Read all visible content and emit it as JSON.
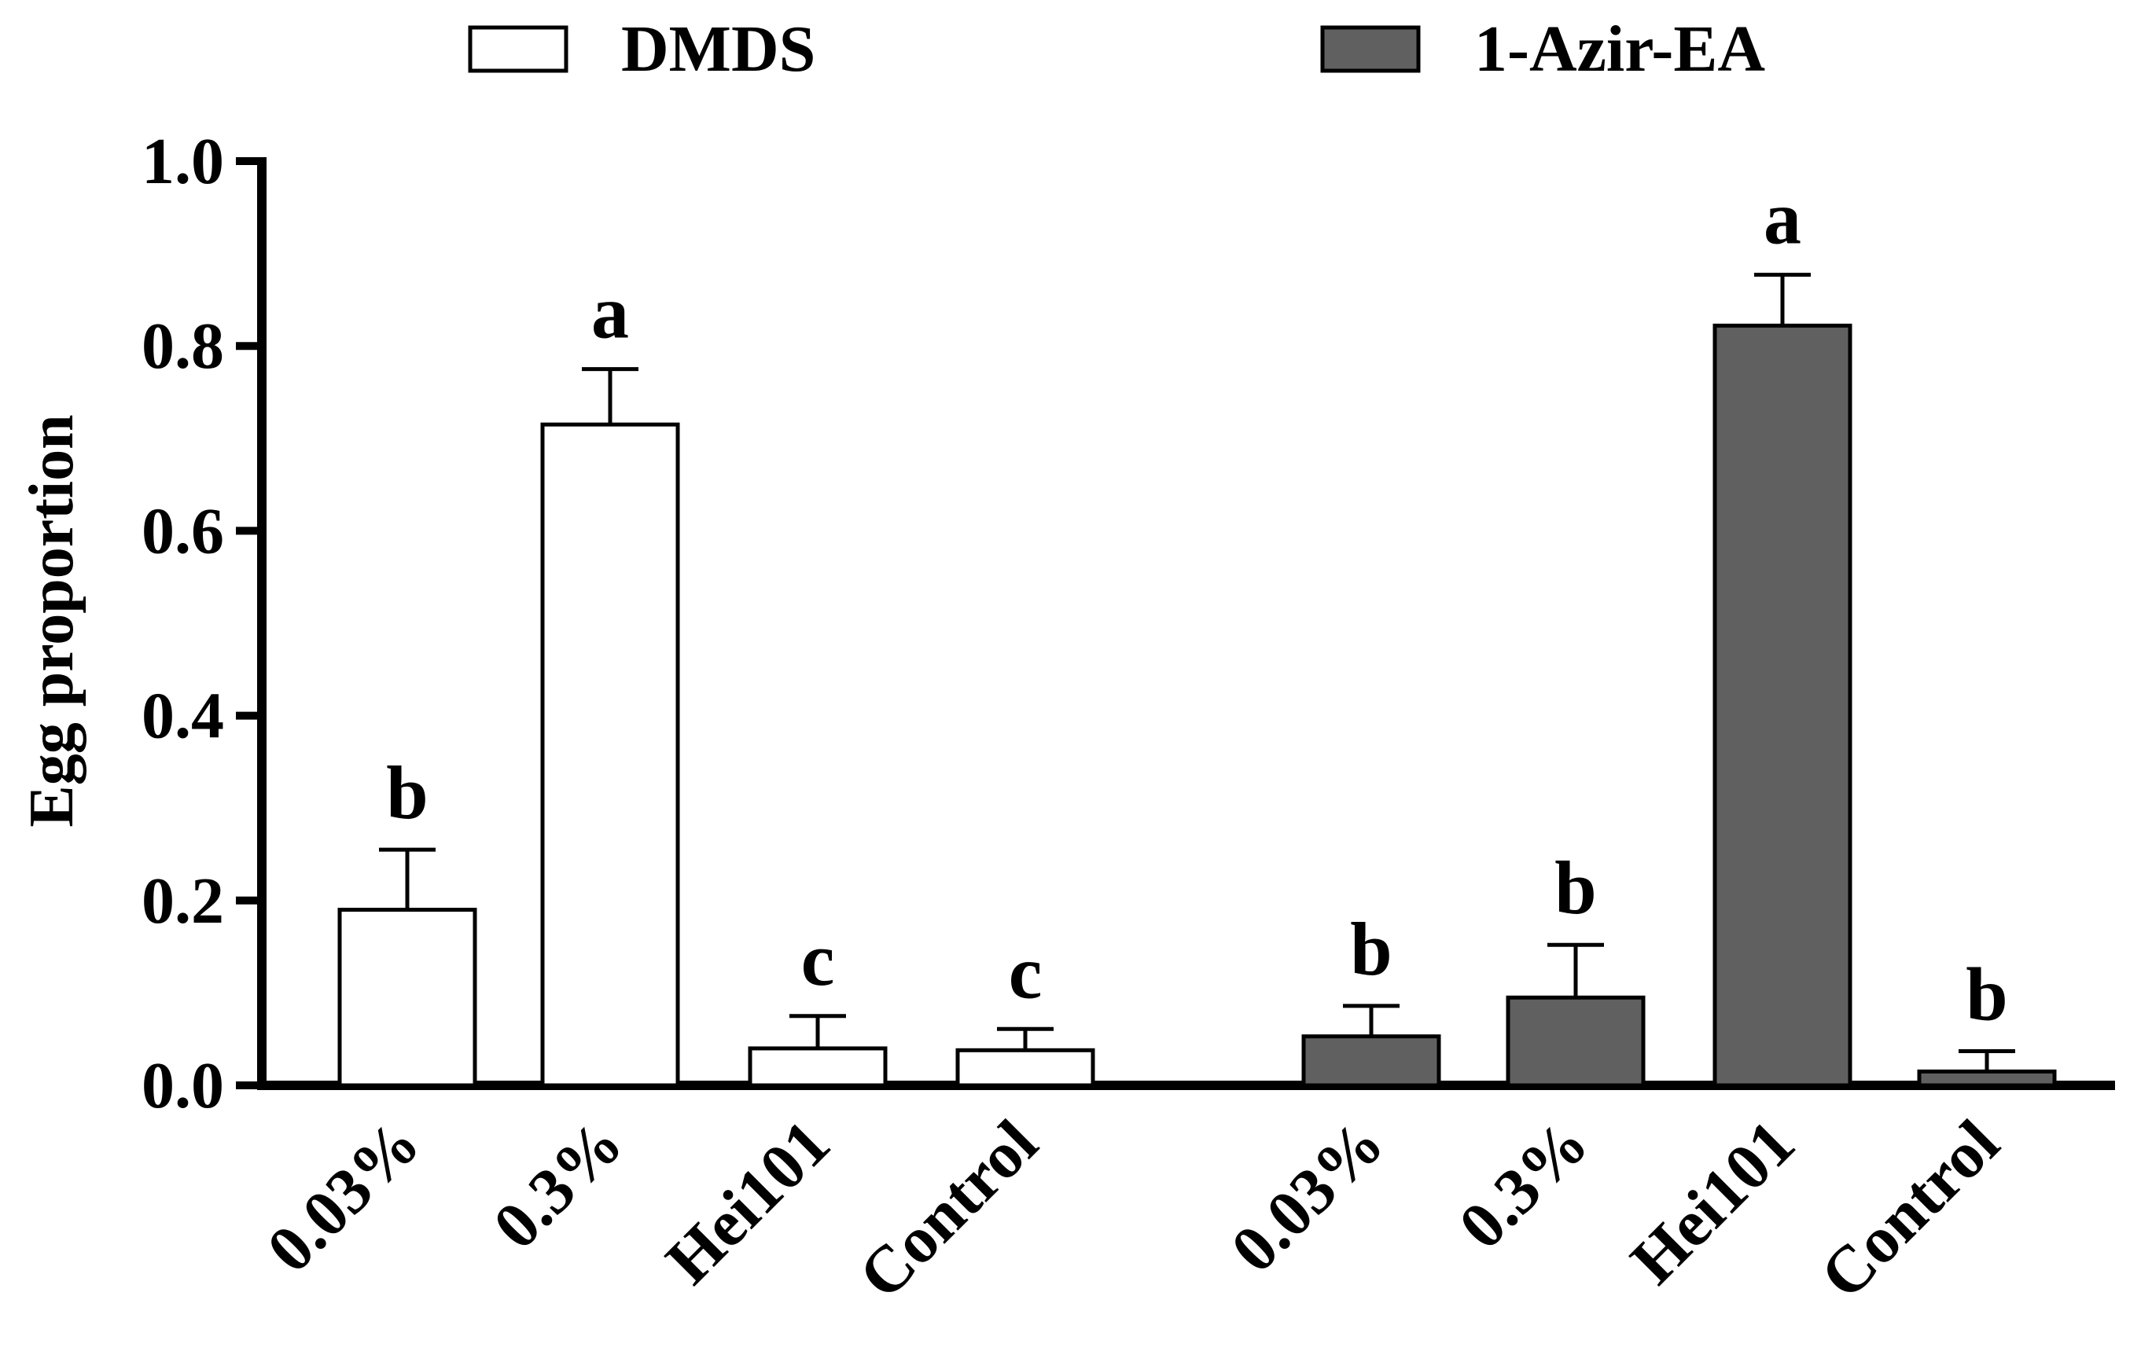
{
  "chart_data": {
    "type": "bar",
    "title": "",
    "xlabel": "",
    "ylabel": "Egg proportion",
    "ylim": [
      0,
      1.0
    ],
    "yticks": [
      "0.0",
      "0.2",
      "0.4",
      "0.6",
      "0.8",
      "1.0"
    ],
    "ytick_values": [
      0,
      0.2,
      0.4,
      0.6,
      0.8,
      1.0
    ],
    "legend_position": "top",
    "series": [
      {
        "name": "DMDS",
        "color": "#ffffff",
        "categories": [
          "0.03%",
          "0.3%",
          "Hei101",
          "Control"
        ],
        "values": [
          0.19,
          0.715,
          0.04,
          0.038
        ],
        "errors": [
          0.065,
          0.06,
          0.035,
          0.023
        ],
        "letters": [
          "b",
          "a",
          "c",
          "c"
        ]
      },
      {
        "name": "1-Azir-EA",
        "color": "#606060",
        "categories": [
          "0.03%",
          "0.3%",
          "Hei101",
          "Control"
        ],
        "values": [
          0.053,
          0.095,
          0.822,
          0.015
        ],
        "errors": [
          0.033,
          0.057,
          0.055,
          0.022
        ],
        "letters": [
          "b",
          "b",
          "a",
          "b"
        ]
      }
    ]
  }
}
